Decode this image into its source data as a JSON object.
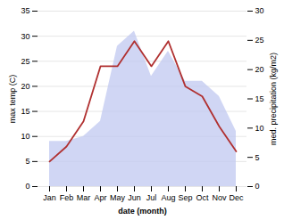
{
  "chart_data": {
    "type": "line",
    "categories": [
      "Jan",
      "Feb",
      "Mar",
      "Apr",
      "May",
      "Jun",
      "Jul",
      "Aug",
      "Sep",
      "Oct",
      "Nov",
      "Dec"
    ],
    "series": [
      {
        "type": "area",
        "color": "#c0c8f0",
        "values": [
          9,
          9,
          10,
          13,
          28,
          31,
          22,
          27,
          21,
          21,
          18,
          11
        ]
      },
      {
        "type": "line",
        "color": "#b03030",
        "values": [
          5,
          8,
          13,
          24,
          24,
          29,
          24,
          29,
          20,
          18,
          12,
          7
        ]
      }
    ],
    "xlabel": "date (month)",
    "ylabel": "max temp (C)",
    "y2label": "med. precipitation (kg/m2)",
    "ylim": [
      0,
      35
    ],
    "yticks": [
      0,
      5,
      10,
      15,
      20,
      25,
      30,
      35
    ],
    "y2lim": [
      0,
      30
    ],
    "y2ticks": [
      0,
      5,
      10,
      15,
      20,
      25,
      30
    ],
    "grid": true
  }
}
